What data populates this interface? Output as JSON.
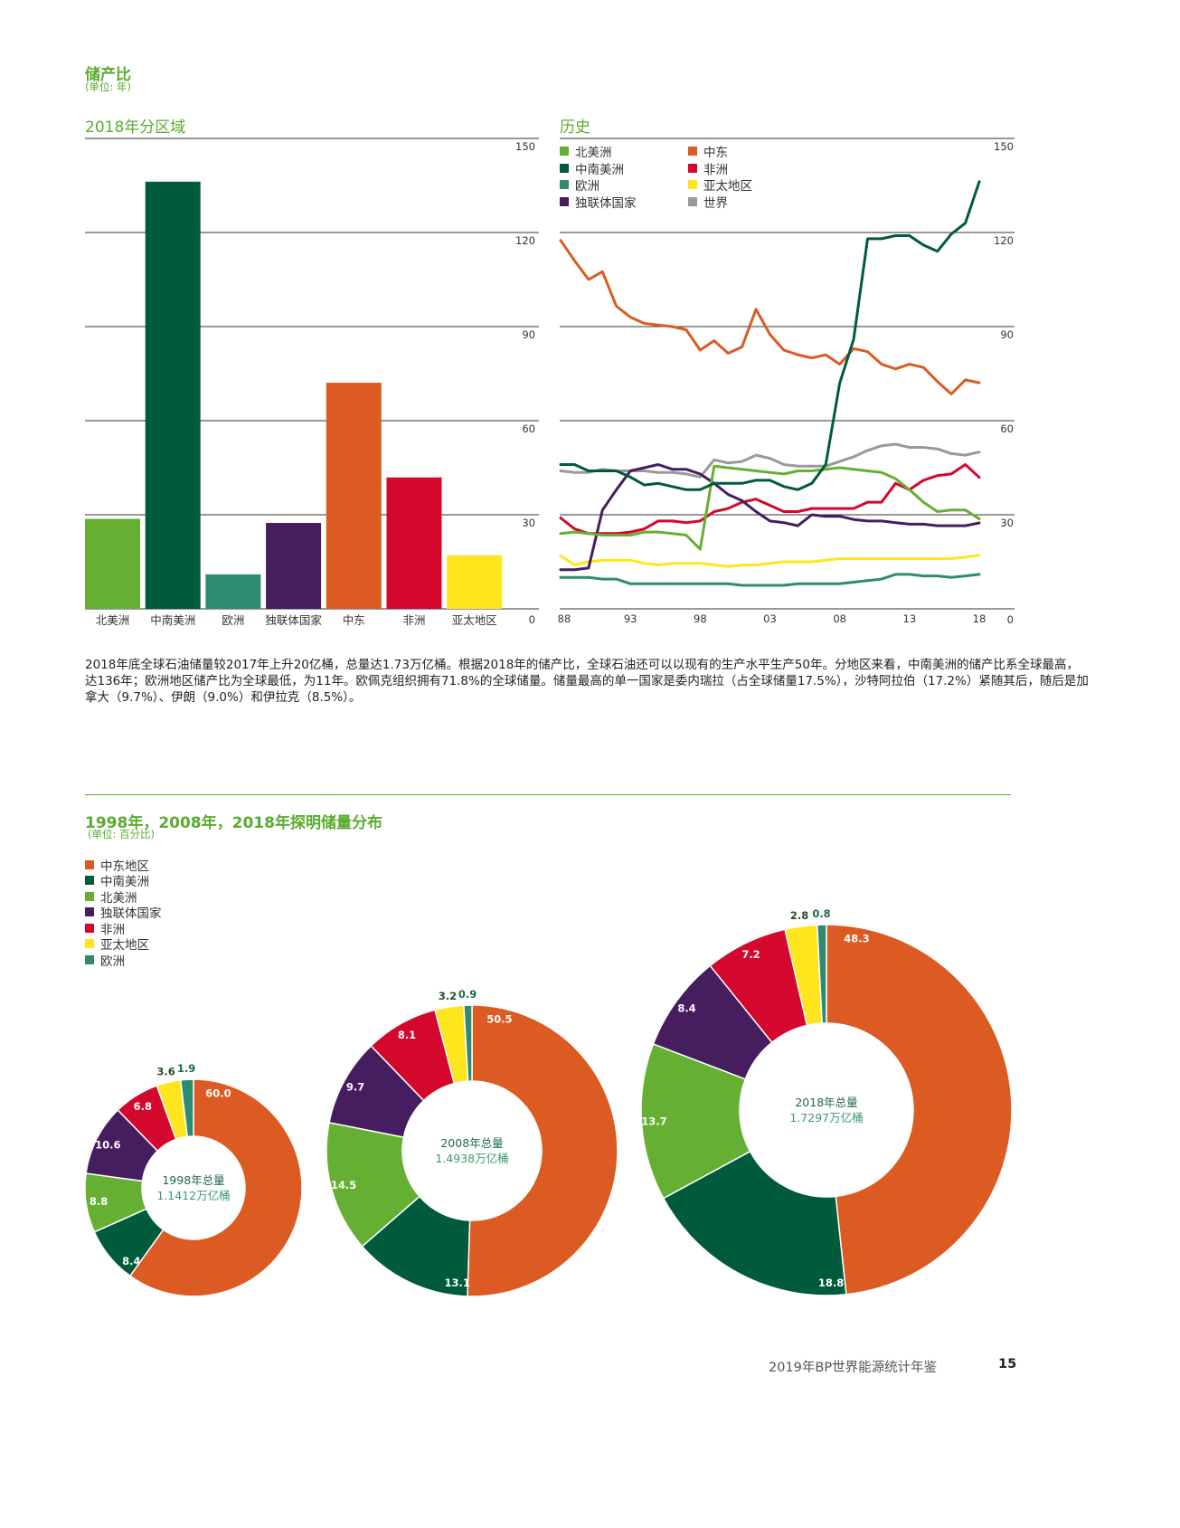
{
  "header": {
    "title": "储产比",
    "unit": "(单位: 年)"
  },
  "section_bar": {
    "heading": "2018年分区域"
  },
  "section_line": {
    "heading": "历史"
  },
  "paragraph": "2018年底全球石油储量较2017年上升20亿桶，总量达1.73万亿桶。根据2018年的储产比，全球石油还可以以现有的生产水平生产50年。分地区来看，中南美洲的储产比系全球最高，达136年；欧洲地区储产比为全球最低，为11年。欧佩克组织拥有71.8%的全球储量。储量最高的单一国家是委内瑞拉（占全球储量17.5%），沙特阿拉伯（17.2%）紧随其后，随后是加拿大（9.7%）、伊朗（9.0%）和伊拉克（8.5%）。",
  "section_donut": {
    "title": "1998年，2008年，2018年探明储量分布",
    "unit": "(单位: 百分比)"
  },
  "footer": {
    "text": "2019年BP世界能源统计年鉴",
    "page": "15"
  },
  "colors": {
    "north_america": "#65b032",
    "scs_america": "#005a3c",
    "europe": "#2e8b72",
    "cis": "#461d5f",
    "middle_east": "#db5b22",
    "africa": "#d4082d",
    "asia_pacific": "#ffe51d",
    "world": "#999999"
  },
  "chart_data": [
    {
      "type": "bar",
      "title": "2018年分区域",
      "categories": [
        "北美洲",
        "中南美洲",
        "欧洲",
        "独联体国家",
        "中东",
        "非洲",
        "亚太地区"
      ],
      "values": [
        28.7,
        136.2,
        11.0,
        27.4,
        72.1,
        41.9,
        17.1
      ],
      "colors": [
        "#65b032",
        "#005a3c",
        "#2e8b72",
        "#461d5f",
        "#db5b22",
        "#d4082d",
        "#ffe51d"
      ],
      "ylim": [
        0,
        150
      ],
      "yticks": [
        "0",
        "30",
        "60",
        "90",
        "120",
        "150"
      ],
      "grid": true
    },
    {
      "type": "line",
      "title": "历史",
      "x": [
        1988,
        1989,
        1990,
        1991,
        1992,
        1993,
        1994,
        1995,
        1996,
        1997,
        1998,
        1999,
        2000,
        2001,
        2002,
        2003,
        2004,
        2005,
        2006,
        2007,
        2008,
        2009,
        2010,
        2011,
        2012,
        2013,
        2014,
        2015,
        2016,
        2017,
        2018
      ],
      "xticks": [
        "88",
        "93",
        "98",
        "03",
        "08",
        "13",
        "18"
      ],
      "ylim": [
        0,
        150
      ],
      "yticks": [
        "0",
        "30",
        "60",
        "90",
        "120",
        "150"
      ],
      "grid": true,
      "legend": [
        "北美洲",
        "中东",
        "中南美洲",
        "非洲",
        "欧洲",
        "亚太地区",
        "独联体国家",
        "世界"
      ],
      "series": [
        {
          "name": "北美洲",
          "color": "#65b032",
          "values": [
            24,
            24.5,
            24,
            23.5,
            23.5,
            23.5,
            24.5,
            24.5,
            24,
            23.5,
            19,
            45.5,
            45,
            44.5,
            44,
            43.5,
            43,
            44,
            44,
            44.5,
            45,
            44.5,
            44,
            43.5,
            41.5,
            38,
            34,
            31,
            31.5,
            31.5,
            28.7
          ]
        },
        {
          "name": "中东",
          "color": "#db5b22",
          "values": [
            117.5,
            111,
            105,
            107.5,
            96.5,
            93,
            91,
            90.5,
            90,
            89,
            82.5,
            85.5,
            81.5,
            83.5,
            95.5,
            87.5,
            82.5,
            81,
            80,
            81,
            78,
            83,
            82,
            78,
            76.5,
            78,
            77,
            72.5,
            68.5,
            73,
            72.1
          ]
        },
        {
          "name": "中南美洲",
          "color": "#005a3c",
          "values": [
            46,
            46,
            44,
            44,
            44,
            42,
            39.5,
            40,
            39,
            38,
            38,
            40,
            40,
            40,
            41,
            41,
            39,
            38,
            40,
            46,
            72,
            86,
            118,
            118,
            119,
            119,
            116,
            114,
            119.5,
            123,
            136.2
          ]
        },
        {
          "name": "非洲",
          "color": "#d4082d",
          "values": [
            29,
            25.5,
            24,
            24,
            24,
            24.5,
            25.5,
            28,
            28,
            27.5,
            28,
            31,
            32,
            34,
            35,
            33,
            31,
            31,
            32,
            32,
            32,
            32,
            34,
            34,
            40,
            38,
            41,
            42.5,
            43,
            46,
            41.9
          ]
        },
        {
          "name": "欧洲",
          "color": "#2e8b72",
          "values": [
            10,
            10,
            10,
            9.5,
            9.5,
            8,
            8,
            8,
            8,
            8,
            8,
            8,
            8,
            7.5,
            7.5,
            7.5,
            7.5,
            8,
            8,
            8,
            8,
            8.5,
            9,
            9.5,
            11,
            11,
            10.5,
            10.5,
            10,
            10.5,
            11.0
          ]
        },
        {
          "name": "亚太地区",
          "color": "#ffe51d",
          "values": [
            17,
            14,
            15,
            15.5,
            15.5,
            15.5,
            14.5,
            14,
            14.5,
            14.5,
            14.5,
            14,
            13.5,
            14,
            14,
            14.5,
            15,
            15,
            15,
            15.5,
            16,
            16,
            16,
            16,
            16,
            16,
            16,
            16,
            16,
            16.5,
            17.1
          ]
        },
        {
          "name": "独联体国家",
          "color": "#461d5f",
          "values": [
            12.5,
            12.5,
            13,
            31.5,
            38,
            44,
            45,
            46,
            44.5,
            44.5,
            43,
            40,
            36.5,
            34.5,
            31,
            28,
            27.5,
            26.5,
            30,
            29.5,
            29.5,
            28.5,
            28,
            28,
            27.5,
            27,
            27,
            26.5,
            26.5,
            26.5,
            27.4
          ]
        },
        {
          "name": "世界",
          "color": "#999999",
          "values": [
            44,
            43.5,
            43.5,
            44.5,
            44,
            44,
            44,
            43.5,
            43.5,
            43,
            42,
            47.5,
            46.5,
            47,
            49,
            48,
            46,
            45.5,
            45.5,
            45.5,
            47,
            48.5,
            50.5,
            52,
            52.5,
            51.5,
            51.5,
            51,
            49.5,
            49,
            50
          ]
        }
      ]
    },
    {
      "type": "pie",
      "title": "1998年，2008年，2018年探明储量分布",
      "legend": [
        "中东地区",
        "中南美洲",
        "北美洲",
        "独联体国家",
        "非洲",
        "亚太地区",
        "欧洲"
      ],
      "donuts": [
        {
          "label": "1998年总量",
          "total": "1.1412万亿桶",
          "values": [
            60.0,
            8.4,
            8.8,
            10.6,
            6.8,
            3.6,
            1.9
          ]
        },
        {
          "label": "2008年总量",
          "total": "1.4938万亿桶",
          "values": [
            50.5,
            13.1,
            14.5,
            9.7,
            8.1,
            3.2,
            0.9
          ]
        },
        {
          "label": "2018年总量",
          "total": "1.7297万亿桶",
          "values": [
            48.3,
            18.8,
            13.7,
            8.4,
            7.2,
            2.8,
            0.8
          ]
        }
      ]
    }
  ]
}
